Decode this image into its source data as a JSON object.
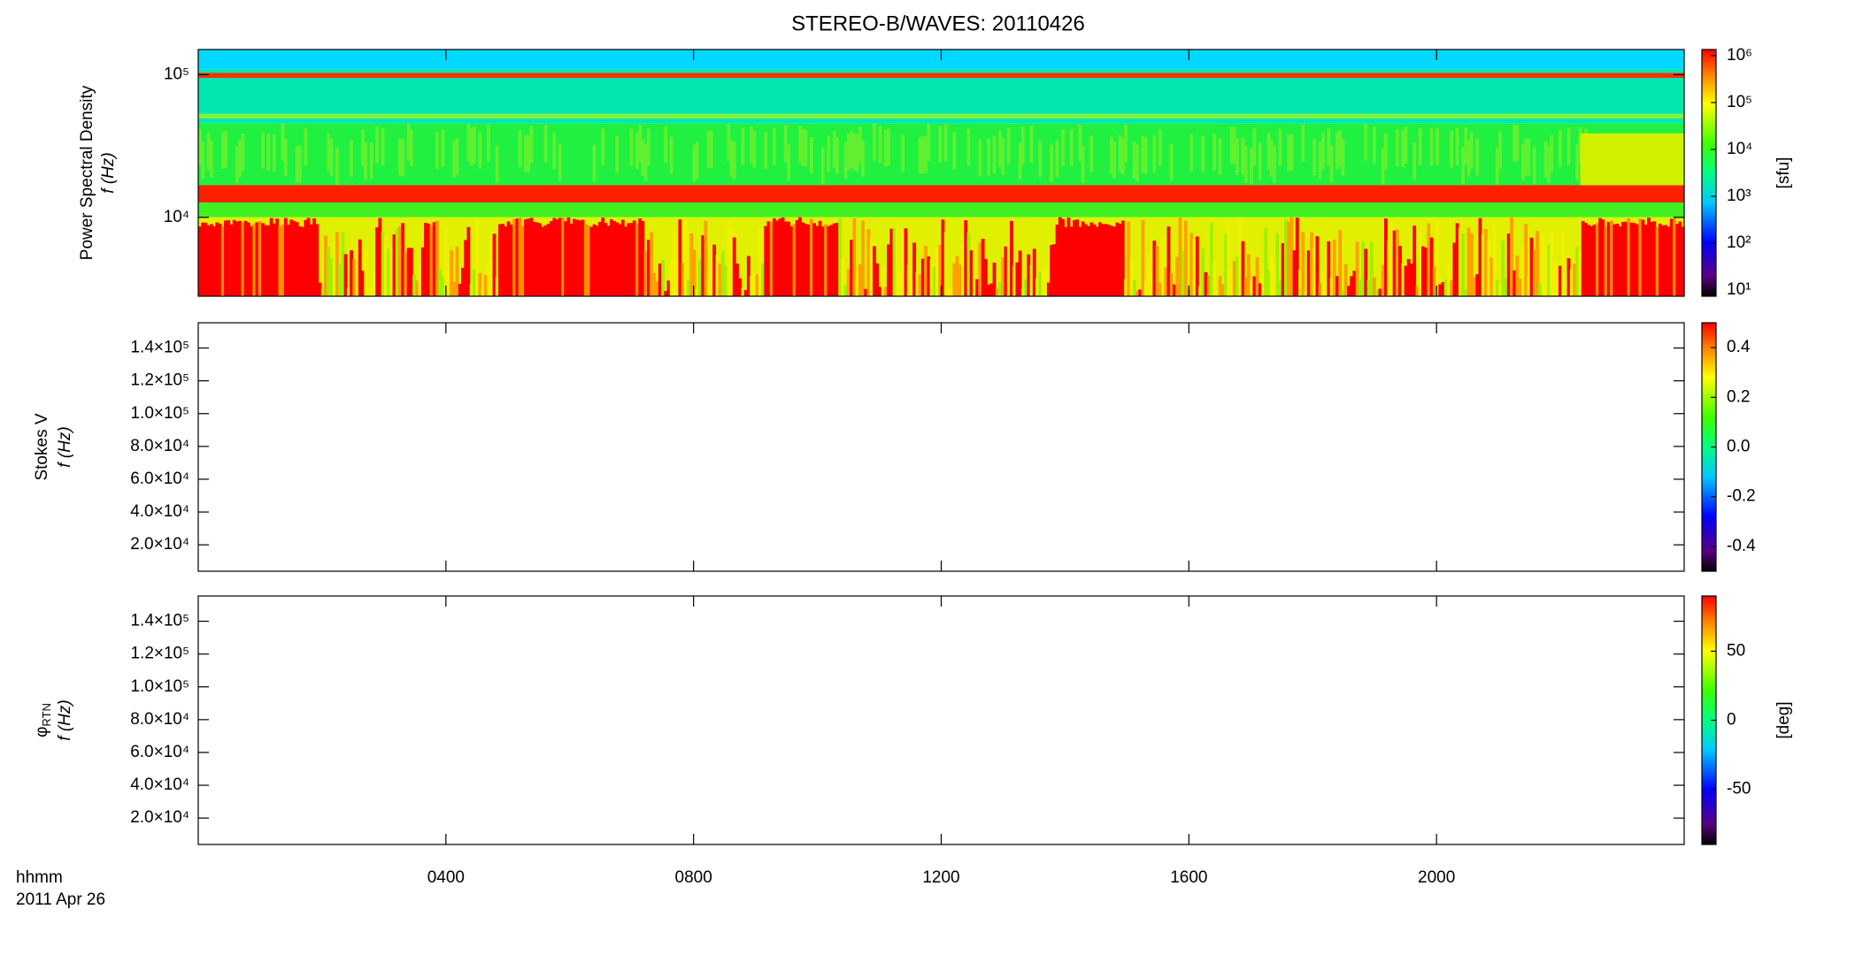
{
  "title": "STEREO-B/WAVES: 20110426",
  "chart_data": [
    {
      "type": "heatmap",
      "ylabel": "Power Spectral Density",
      "ylabel2": "f (Hz)",
      "log_y": true,
      "ylim": [
        2800,
        150000
      ],
      "yticks": [
        {
          "value": 10000,
          "label": "10⁴"
        },
        {
          "value": 100000,
          "label": "10⁵"
        }
      ],
      "colorbar": {
        "label": "[sfu]",
        "log": true,
        "lim": [
          7.4,
          1350000
        ],
        "ticks": [
          {
            "value": 10,
            "label": "10¹"
          },
          {
            "value": 100,
            "label": "10²"
          },
          {
            "value": 1000,
            "label": "10³"
          },
          {
            "value": 10000,
            "label": "10⁴"
          },
          {
            "value": 100000,
            "label": "10⁵"
          },
          {
            "value": 1000000,
            "label": "10⁶"
          }
        ]
      }
    },
    {
      "type": "heatmap",
      "ylabel": "Stokes V",
      "ylabel2": "f (Hz)",
      "log_y": false,
      "ylim": [
        3900,
        155400
      ],
      "yticks": [
        {
          "value": 20000,
          "label": "2.0×10⁴"
        },
        {
          "value": 40000,
          "label": "4.0×10⁴"
        },
        {
          "value": 60000,
          "label": "6.0×10⁴"
        },
        {
          "value": 80000,
          "label": "8.0×10⁴"
        },
        {
          "value": 100000,
          "label": "1.0×10⁵"
        },
        {
          "value": 120000,
          "label": "1.2×10⁵"
        },
        {
          "value": 140000,
          "label": "1.4×10⁵"
        }
      ],
      "colorbar": {
        "log": false,
        "lim": [
          -0.5,
          0.5
        ],
        "ticks": [
          {
            "value": -0.4,
            "label": "-0.4"
          },
          {
            "value": -0.2,
            "label": "-0.2"
          },
          {
            "value": 0,
            "label": "0.0"
          },
          {
            "value": 0.2,
            "label": "0.2"
          },
          {
            "value": 0.4,
            "label": "0.4"
          }
        ]
      }
    },
    {
      "type": "heatmap",
      "ylabel": "φ",
      "ylabel_sub": "RTN",
      "ylabel2": "f (Hz)",
      "log_y": false,
      "ylim": [
        3900,
        155400
      ],
      "yticks": [
        {
          "value": 20000,
          "label": "2.0×10⁴"
        },
        {
          "value": 40000,
          "label": "4.0×10⁴"
        },
        {
          "value": 60000,
          "label": "6.0×10⁴"
        },
        {
          "value": 80000,
          "label": "8.0×10⁴"
        },
        {
          "value": 100000,
          "label": "1.0×10⁵"
        },
        {
          "value": 120000,
          "label": "1.2×10⁵"
        },
        {
          "value": 140000,
          "label": "1.4×10⁵"
        }
      ],
      "colorbar": {
        "label": "[deg]",
        "log": false,
        "lim": [
          -90,
          90
        ],
        "ticks": [
          -50,
          0,
          50
        ]
      },
      "xlabel": "hhmm",
      "date": "2011 Apr 26",
      "xlim": [
        0,
        24
      ],
      "xticks": [
        {
          "value": 4,
          "label": "0400"
        },
        {
          "value": 8,
          "label": "0800"
        },
        {
          "value": 12,
          "label": "1200"
        },
        {
          "value": 16,
          "label": "1600"
        },
        {
          "value": 20,
          "label": "2000"
        }
      ]
    }
  ]
}
